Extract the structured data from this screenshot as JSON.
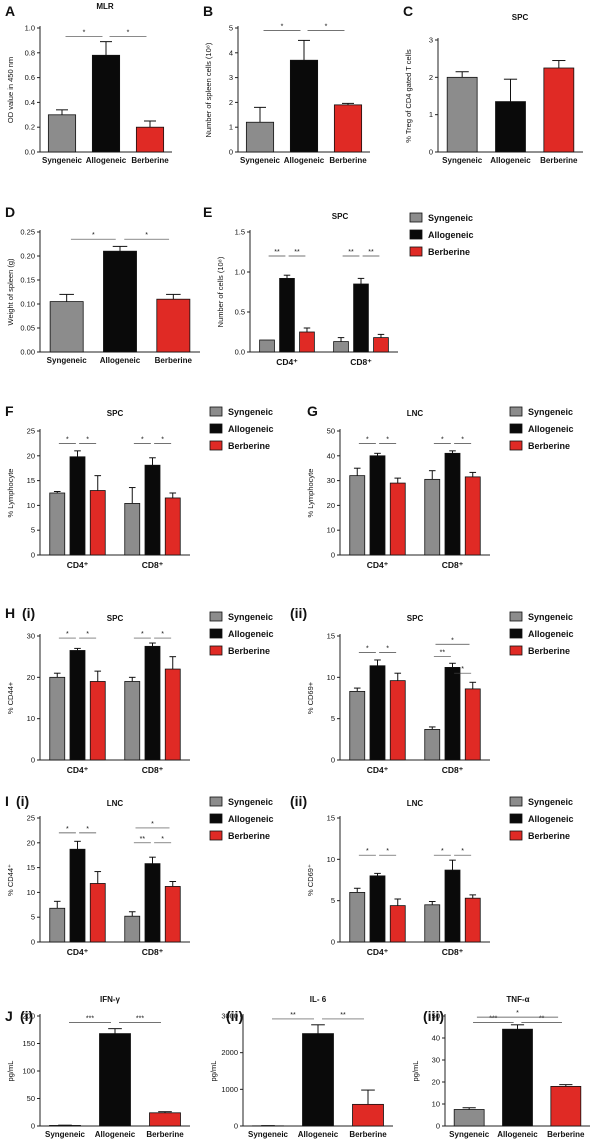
{
  "colors": {
    "Syngeneic": "#8c8c8c",
    "Allogeneic": "#0a0a0a",
    "Berberine": "#e02a25"
  },
  "legend_entries": [
    "Syngeneic",
    "Allogeneic",
    "Berberine"
  ],
  "chart_data": [
    {
      "id": "A",
      "type": "bar",
      "panel_label": "A",
      "title": "MLR",
      "subtitle": "",
      "ylabel": "OD value in 450 nm",
      "ylim": [
        0,
        1.0
      ],
      "yticks": [
        "0.0",
        "0.2",
        "0.4",
        "0.6",
        "0.8",
        "1.0"
      ],
      "categories": [
        "Syngeneic",
        "Allogeneic",
        "Berberine"
      ],
      "values": [
        0.3,
        0.78,
        0.2
      ],
      "errors": [
        0.04,
        0.11,
        0.05
      ],
      "group_labels": [],
      "legend": false,
      "annotations": [
        {
          "text": "*",
          "from": 0,
          "to": 1,
          "level": 0.93
        },
        {
          "text": "*",
          "from": 1,
          "to": 2,
          "level": 0.93
        }
      ]
    },
    {
      "id": "B",
      "type": "bar",
      "panel_label": "B",
      "title": "",
      "subtitle": "",
      "ylabel": "Number of spleen cells (10⁸)",
      "ylim": [
        0,
        5
      ],
      "yticks": [
        "0",
        "1",
        "2",
        "3",
        "4",
        "5"
      ],
      "categories": [
        "Syngeneic",
        "Allogeneic",
        "Berberine"
      ],
      "values": [
        1.2,
        3.7,
        1.9
      ],
      "errors": [
        0.6,
        0.8,
        0.06
      ],
      "group_labels": [],
      "legend": false,
      "annotations": [
        {
          "text": "*",
          "from": 0,
          "to": 1,
          "level": 4.9
        },
        {
          "text": "*",
          "from": 1,
          "to": 2,
          "level": 4.9
        }
      ]
    },
    {
      "id": "C",
      "type": "bar",
      "panel_label": "C",
      "title": "SPC",
      "subtitle": "",
      "ylabel": "% Treg of CD4 gated T cells",
      "ylim": [
        0,
        3
      ],
      "yticks": [
        "0",
        "1",
        "2",
        "3"
      ],
      "categories": [
        "Syngeneic",
        "Allogeneic",
        "Berberine"
      ],
      "values": [
        2.0,
        1.35,
        2.25
      ],
      "errors": [
        0.15,
        0.6,
        0.2
      ],
      "group_labels": [],
      "legend": false,
      "annotations": []
    },
    {
      "id": "D",
      "type": "bar",
      "panel_label": "D",
      "title": "",
      "subtitle": "",
      "ylabel": "Weight of spleen (g)",
      "ylim": [
        0,
        0.25
      ],
      "yticks": [
        "0.00",
        "0.05",
        "0.10",
        "0.15",
        "0.20",
        "0.25"
      ],
      "categories": [
        "Syngeneic",
        "Allogeneic",
        "Berberine"
      ],
      "values": [
        0.105,
        0.21,
        0.11
      ],
      "errors": [
        0.015,
        0.01,
        0.01
      ],
      "group_labels": [],
      "legend": false,
      "annotations": [
        {
          "text": "*",
          "from": 0,
          "to": 1,
          "level": 0.235
        },
        {
          "text": "*",
          "from": 1,
          "to": 2,
          "level": 0.235
        }
      ]
    },
    {
      "id": "E",
      "type": "bar",
      "panel_label": "E",
      "title": "SPC",
      "subtitle": "",
      "ylabel": "Number of cells (10⁸)",
      "ylim": [
        0,
        1.5
      ],
      "yticks": [
        "0.0",
        "0.5",
        "1.0",
        "1.5"
      ],
      "group_labels": [
        "CD4⁺",
        "CD8⁺"
      ],
      "series": [
        {
          "name": "Syngeneic",
          "values": [
            0.15,
            0.13
          ],
          "errors": [
            0.0,
            0.05
          ]
        },
        {
          "name": "Allogeneic",
          "values": [
            0.92,
            0.85
          ],
          "errors": [
            0.04,
            0.07
          ]
        },
        {
          "name": "Berberine",
          "values": [
            0.25,
            0.18
          ],
          "errors": [
            0.05,
            0.04
          ]
        }
      ],
      "legend": true,
      "annotations": [
        {
          "text": "**",
          "group": 0,
          "from": 0,
          "to": 1,
          "level": 1.2
        },
        {
          "text": "**",
          "group": 0,
          "from": 1,
          "to": 2,
          "level": 1.2
        },
        {
          "text": "**",
          "group": 1,
          "from": 0,
          "to": 1,
          "level": 1.2
        },
        {
          "text": "**",
          "group": 1,
          "from": 1,
          "to": 2,
          "level": 1.2
        }
      ]
    },
    {
      "id": "F",
      "type": "bar",
      "panel_label": "F",
      "title": "SPC",
      "subtitle": "",
      "ylabel": "% Lymphocyte",
      "ylim": [
        0,
        25
      ],
      "yticks": [
        "0",
        "5",
        "10",
        "15",
        "20",
        "25"
      ],
      "group_labels": [
        "CD4⁺",
        "CD8⁺"
      ],
      "series": [
        {
          "name": "Syngeneic",
          "values": [
            12.5,
            10.4
          ],
          "errors": [
            0.3,
            3.2
          ]
        },
        {
          "name": "Allogeneic",
          "values": [
            19.8,
            18.1
          ],
          "errors": [
            1.2,
            1.5
          ]
        },
        {
          "name": "Berberine",
          "values": [
            13.0,
            11.5
          ],
          "errors": [
            3.0,
            1.0
          ]
        }
      ],
      "legend": true,
      "annotations": [
        {
          "text": "*",
          "group": 0,
          "from": 0,
          "to": 1,
          "level": 22.5
        },
        {
          "text": "*",
          "group": 0,
          "from": 1,
          "to": 2,
          "level": 22.5
        },
        {
          "text": "*",
          "group": 1,
          "from": 0,
          "to": 1,
          "level": 22.5
        },
        {
          "text": "*",
          "group": 1,
          "from": 1,
          "to": 2,
          "level": 22.5
        }
      ]
    },
    {
      "id": "G",
      "type": "bar",
      "panel_label": "G",
      "title": "LNC",
      "subtitle": "",
      "ylabel": "% Lymphocyte",
      "ylim": [
        0,
        50
      ],
      "yticks": [
        "0",
        "10",
        "20",
        "30",
        "40",
        "50"
      ],
      "group_labels": [
        "CD4⁺",
        "CD8⁺"
      ],
      "series": [
        {
          "name": "Syngeneic",
          "values": [
            32,
            30.5
          ],
          "errors": [
            3,
            3.5
          ]
        },
        {
          "name": "Allogeneic",
          "values": [
            40,
            41
          ],
          "errors": [
            1,
            1
          ]
        },
        {
          "name": "Berberine",
          "values": [
            29,
            31.5
          ],
          "errors": [
            2,
            1.8
          ]
        }
      ],
      "legend": true,
      "annotations": [
        {
          "text": "*",
          "group": 0,
          "from": 0,
          "to": 1,
          "level": 45
        },
        {
          "text": "*",
          "group": 0,
          "from": 1,
          "to": 2,
          "level": 45
        },
        {
          "text": "*",
          "group": 1,
          "from": 0,
          "to": 1,
          "level": 45
        },
        {
          "text": "*",
          "group": 1,
          "from": 1,
          "to": 2,
          "level": 45
        }
      ]
    },
    {
      "id": "Hi",
      "type": "bar",
      "panel_label": "H",
      "subtitle": "(i)",
      "title": "SPC",
      "ylabel": "% CD44+",
      "ylim": [
        0,
        30
      ],
      "yticks": [
        "0",
        "10",
        "20",
        "30"
      ],
      "group_labels": [
        "CD4⁺",
        "CD8⁺"
      ],
      "series": [
        {
          "name": "Syngeneic",
          "values": [
            20,
            19
          ],
          "errors": [
            1,
            1
          ]
        },
        {
          "name": "Allogeneic",
          "values": [
            26.5,
            27.5
          ],
          "errors": [
            0.5,
            0.8
          ]
        },
        {
          "name": "Berberine",
          "values": [
            19,
            22
          ],
          "errors": [
            2.5,
            3
          ]
        }
      ],
      "legend": true,
      "annotations": [
        {
          "text": "*",
          "group": 0,
          "from": 0,
          "to": 1,
          "level": 29.5
        },
        {
          "text": "*",
          "group": 0,
          "from": 1,
          "to": 2,
          "level": 29.5
        },
        {
          "text": "*",
          "group": 1,
          "from": 0,
          "to": 1,
          "level": 29.5
        },
        {
          "text": "*",
          "group": 1,
          "from": 1,
          "to": 2,
          "level": 29.5
        }
      ]
    },
    {
      "id": "Hii",
      "type": "bar",
      "panel_label": "",
      "subtitle": "(ii)",
      "title": "SPC",
      "ylabel": "% CD69+",
      "ylim": [
        0,
        15
      ],
      "yticks": [
        "0",
        "5",
        "10",
        "15"
      ],
      "group_labels": [
        "CD4⁺",
        "CD8⁺"
      ],
      "series": [
        {
          "name": "Syngeneic",
          "values": [
            8.3,
            3.7
          ],
          "errors": [
            0.4,
            0.3
          ]
        },
        {
          "name": "Allogeneic",
          "values": [
            11.4,
            11.2
          ],
          "errors": [
            0.7,
            0.5
          ]
        },
        {
          "name": "Berberine",
          "values": [
            9.6,
            8.6
          ],
          "errors": [
            0.9,
            0.8
          ]
        }
      ],
      "legend": true,
      "annotations": [
        {
          "text": "*",
          "group": 0,
          "from": 0,
          "to": 1,
          "level": 13.0
        },
        {
          "text": "*",
          "group": 0,
          "from": 1,
          "to": 2,
          "level": 13.0
        },
        {
          "text": "**",
          "group": 1,
          "from": 0,
          "to": 1,
          "level": 12.5
        },
        {
          "text": "*",
          "group": 1,
          "from": 1,
          "to": 2,
          "level": 10.5
        },
        {
          "text": "*",
          "group": 1,
          "from": 0,
          "to": 2,
          "level": 14.0
        }
      ]
    },
    {
      "id": "Ii",
      "type": "bar",
      "panel_label": "I",
      "subtitle": "(i)",
      "title": "LNC",
      "ylabel": "% CD44⁺",
      "ylim": [
        0,
        25
      ],
      "yticks": [
        "0",
        "5",
        "10",
        "15",
        "20",
        "25"
      ],
      "group_labels": [
        "CD4⁺",
        "CD8⁺"
      ],
      "series": [
        {
          "name": "Syngeneic",
          "values": [
            6.8,
            5.2
          ],
          "errors": [
            1.4,
            0.9
          ]
        },
        {
          "name": "Allogeneic",
          "values": [
            18.7,
            15.8
          ],
          "errors": [
            1.6,
            1.3
          ]
        },
        {
          "name": "Berberine",
          "values": [
            11.8,
            11.2
          ],
          "errors": [
            2.4,
            1.0
          ]
        }
      ],
      "legend": true,
      "annotations": [
        {
          "text": "*",
          "group": 0,
          "from": 0,
          "to": 1,
          "level": 22
        },
        {
          "text": "*",
          "group": 0,
          "from": 1,
          "to": 2,
          "level": 22
        },
        {
          "text": "**",
          "group": 1,
          "from": 0,
          "to": 1,
          "level": 20
        },
        {
          "text": "*",
          "group": 1,
          "from": 1,
          "to": 2,
          "level": 20
        },
        {
          "text": "*",
          "group": 1,
          "from": 0,
          "to": 2,
          "level": 23
        }
      ]
    },
    {
      "id": "Iii",
      "type": "bar",
      "panel_label": "",
      "subtitle": "(ii)",
      "title": "LNC",
      "ylabel": "% CD69⁺",
      "ylim": [
        0,
        15
      ],
      "yticks": [
        "0",
        "5",
        "10",
        "15"
      ],
      "group_labels": [
        "CD4⁺",
        "CD8⁺"
      ],
      "series": [
        {
          "name": "Syngeneic",
          "values": [
            6.0,
            4.5
          ],
          "errors": [
            0.5,
            0.4
          ]
        },
        {
          "name": "Allogeneic",
          "values": [
            8.0,
            8.7
          ],
          "errors": [
            0.3,
            1.2
          ]
        },
        {
          "name": "Berberine",
          "values": [
            4.4,
            5.3
          ],
          "errors": [
            0.8,
            0.4
          ]
        }
      ],
      "legend": true,
      "annotations": [
        {
          "text": "*",
          "group": 0,
          "from": 0,
          "to": 1,
          "level": 10.5
        },
        {
          "text": "*",
          "group": 0,
          "from": 1,
          "to": 2,
          "level": 10.5
        },
        {
          "text": "*",
          "group": 1,
          "from": 0,
          "to": 1,
          "level": 10.5
        },
        {
          "text": "*",
          "group": 1,
          "from": 1,
          "to": 2,
          "level": 10.5
        }
      ]
    },
    {
      "id": "Ji",
      "type": "bar",
      "panel_label": "J",
      "subtitle": "(i)",
      "title": "IFN-γ",
      "ylabel": "pg/mL",
      "ylim": [
        0,
        200
      ],
      "yticks": [
        "0",
        "50",
        "100",
        "150",
        "200"
      ],
      "categories": [
        "Syngeneic",
        "Allogeneic",
        "Berberine"
      ],
      "values": [
        1,
        168,
        24
      ],
      "errors": [
        0.5,
        9,
        2
      ],
      "group_labels": [],
      "legend": false,
      "annotations": [
        {
          "text": "***",
          "from": 0,
          "to": 1,
          "level": 188
        },
        {
          "text": "***",
          "from": 1,
          "to": 2,
          "level": 188
        }
      ]
    },
    {
      "id": "Jii",
      "type": "bar",
      "panel_label": "",
      "subtitle": "(ii)",
      "title": "IL- 6",
      "ylabel": "pg/mL",
      "ylim": [
        0,
        3000
      ],
      "yticks": [
        "0",
        "1000",
        "2000",
        "3000"
      ],
      "categories": [
        "Syngeneic",
        "Allogeneic",
        "Berberine"
      ],
      "values": [
        5,
        2520,
        590
      ],
      "errors": [
        5,
        240,
        390
      ],
      "group_labels": [],
      "legend": false,
      "annotations": [
        {
          "text": "**",
          "from": 0,
          "to": 1,
          "level": 2920
        },
        {
          "text": "**",
          "from": 1,
          "to": 2,
          "level": 2920
        }
      ]
    },
    {
      "id": "Jiii",
      "type": "bar",
      "panel_label": "",
      "subtitle": "(iii)",
      "title": "TNF-α",
      "ylabel": "pg/mL",
      "ylim": [
        0,
        50
      ],
      "yticks": [
        "0",
        "10",
        "20",
        "30",
        "40",
        "50"
      ],
      "categories": [
        "Syngeneic",
        "Allogeneic",
        "Berberine"
      ],
      "values": [
        7.5,
        44,
        18
      ],
      "errors": [
        0.8,
        2,
        0.8
      ],
      "group_labels": [],
      "legend": false,
      "annotations": [
        {
          "text": "***",
          "from": 0,
          "to": 1,
          "level": 47
        },
        {
          "text": "**",
          "from": 1,
          "to": 2,
          "level": 47
        },
        {
          "text": "*",
          "from": 0,
          "to": 2,
          "level": 49.5
        }
      ]
    }
  ]
}
